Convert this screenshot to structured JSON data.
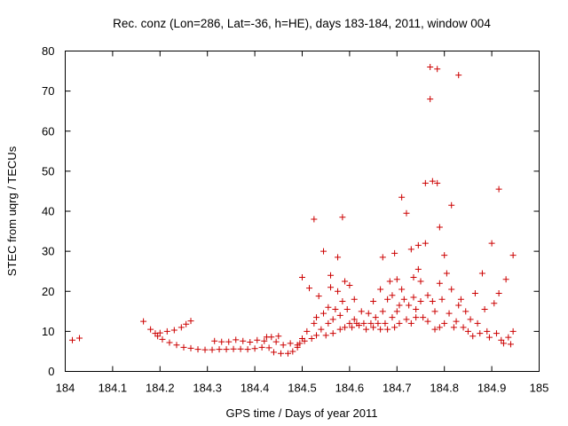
{
  "chart_data": {
    "type": "scatter",
    "title": "Rec. conz (Lon=286, Lat=-36, h=HE), days 183-184, 2011, window 004",
    "xlabel": "GPS time / Days of year 2011",
    "ylabel": "STEC from uqrg / TECUs",
    "xlim": [
      184,
      185
    ],
    "ylim": [
      0,
      80
    ],
    "xticks": [
      "184",
      "184.1",
      "184.2",
      "184.3",
      "184.4",
      "184.5",
      "184.6",
      "184.7",
      "184.8",
      "184.9",
      "185"
    ],
    "yticks": [
      "0",
      "10",
      "20",
      "30",
      "40",
      "50",
      "60",
      "70",
      "80"
    ],
    "marker": "+",
    "color": "#cc0000",
    "grid": false,
    "series": [
      {
        "name": "STEC",
        "points": [
          [
            184.015,
            7.8
          ],
          [
            184.03,
            8.3
          ],
          [
            184.165,
            12.5
          ],
          [
            184.18,
            10.5
          ],
          [
            184.19,
            9.5
          ],
          [
            184.195,
            8.8
          ],
          [
            184.2,
            9.6
          ],
          [
            184.205,
            8.0
          ],
          [
            184.215,
            10.0
          ],
          [
            184.22,
            7.2
          ],
          [
            184.23,
            10.3
          ],
          [
            184.235,
            6.6
          ],
          [
            184.245,
            11.0
          ],
          [
            184.25,
            6.0
          ],
          [
            184.255,
            11.8
          ],
          [
            184.265,
            12.6
          ],
          [
            184.265,
            5.8
          ],
          [
            184.28,
            5.5
          ],
          [
            184.295,
            5.4
          ],
          [
            184.31,
            5.4
          ],
          [
            184.315,
            7.6
          ],
          [
            184.325,
            5.5
          ],
          [
            184.33,
            7.4
          ],
          [
            184.34,
            5.5
          ],
          [
            184.345,
            7.4
          ],
          [
            184.355,
            5.6
          ],
          [
            184.36,
            7.9
          ],
          [
            184.37,
            5.6
          ],
          [
            184.375,
            7.6
          ],
          [
            184.385,
            5.5
          ],
          [
            184.39,
            7.3
          ],
          [
            184.4,
            5.7
          ],
          [
            184.405,
            7.8
          ],
          [
            184.415,
            6.0
          ],
          [
            184.42,
            7.6
          ],
          [
            184.425,
            8.6
          ],
          [
            184.43,
            5.9
          ],
          [
            184.435,
            8.6
          ],
          [
            184.44,
            4.8
          ],
          [
            184.445,
            7.4
          ],
          [
            184.45,
            8.8
          ],
          [
            184.455,
            4.5
          ],
          [
            184.46,
            6.6
          ],
          [
            184.47,
            4.5
          ],
          [
            184.475,
            7.0
          ],
          [
            184.48,
            5.0
          ],
          [
            184.49,
            6.0
          ],
          [
            184.49,
            6.6
          ],
          [
            184.495,
            7.0
          ],
          [
            184.5,
            8.2
          ],
          [
            184.5,
            23.5
          ],
          [
            184.505,
            7.6
          ],
          [
            184.51,
            10.0
          ],
          [
            184.515,
            20.8
          ],
          [
            184.52,
            8.2
          ],
          [
            184.525,
            12.0
          ],
          [
            184.525,
            38.0
          ],
          [
            184.53,
            9.0
          ],
          [
            184.53,
            13.5
          ],
          [
            184.535,
            18.8
          ],
          [
            184.54,
            10.5
          ],
          [
            184.545,
            14.5
          ],
          [
            184.545,
            30.0
          ],
          [
            184.55,
            9.0
          ],
          [
            184.555,
            12.0
          ],
          [
            184.555,
            16.0
          ],
          [
            184.56,
            21.0
          ],
          [
            184.56,
            24.0
          ],
          [
            184.565,
            9.5
          ],
          [
            184.565,
            13.0
          ],
          [
            184.57,
            15.5
          ],
          [
            184.575,
            28.5
          ],
          [
            184.575,
            20.0
          ],
          [
            184.58,
            10.5
          ],
          [
            184.58,
            14.0
          ],
          [
            184.585,
            38.5
          ],
          [
            184.585,
            17.5
          ],
          [
            184.59,
            11.0
          ],
          [
            184.59,
            22.5
          ],
          [
            184.595,
            15.5
          ],
          [
            184.6,
            12.0
          ],
          [
            184.6,
            21.5
          ],
          [
            184.605,
            11.0
          ],
          [
            184.61,
            13.0
          ],
          [
            184.61,
            18.0
          ],
          [
            184.615,
            12.0
          ],
          [
            184.62,
            11.5
          ],
          [
            184.625,
            15.0
          ],
          [
            184.63,
            12.0
          ],
          [
            184.635,
            10.5
          ],
          [
            184.64,
            14.5
          ],
          [
            184.645,
            12.0
          ],
          [
            184.65,
            17.5
          ],
          [
            184.65,
            11.0
          ],
          [
            184.655,
            13.5
          ],
          [
            184.66,
            12.0
          ],
          [
            184.665,
            10.5
          ],
          [
            184.665,
            20.5
          ],
          [
            184.67,
            28.5
          ],
          [
            184.67,
            15.0
          ],
          [
            184.675,
            12.0
          ],
          [
            184.68,
            18.0
          ],
          [
            184.68,
            10.5
          ],
          [
            184.685,
            22.5
          ],
          [
            184.69,
            13.5
          ],
          [
            184.69,
            19.0
          ],
          [
            184.695,
            29.5
          ],
          [
            184.695,
            11.0
          ],
          [
            184.7,
            23.0
          ],
          [
            184.7,
            15.0
          ],
          [
            184.705,
            16.5
          ],
          [
            184.705,
            12.0
          ],
          [
            184.71,
            43.5
          ],
          [
            184.71,
            20.5
          ],
          [
            184.715,
            18.0
          ],
          [
            184.72,
            13.0
          ],
          [
            184.72,
            39.5
          ],
          [
            184.725,
            16.5
          ],
          [
            184.73,
            12.0
          ],
          [
            184.73,
            30.5
          ],
          [
            184.735,
            23.5
          ],
          [
            184.735,
            18.5
          ],
          [
            184.74,
            15.5
          ],
          [
            184.74,
            13.5
          ],
          [
            184.745,
            31.5
          ],
          [
            184.745,
            25.5
          ],
          [
            184.75,
            17.5
          ],
          [
            184.75,
            22.5
          ],
          [
            184.755,
            13.5
          ],
          [
            184.76,
            47.0
          ],
          [
            184.76,
            32.0
          ],
          [
            184.765,
            19.0
          ],
          [
            184.765,
            12.5
          ],
          [
            184.77,
            76.0
          ],
          [
            184.77,
            68.0
          ],
          [
            184.775,
            47.5
          ],
          [
            184.775,
            17.5
          ],
          [
            184.78,
            15.0
          ],
          [
            184.78,
            10.5
          ],
          [
            184.785,
            75.5
          ],
          [
            184.785,
            47.0
          ],
          [
            184.79,
            36.0
          ],
          [
            184.79,
            22.0
          ],
          [
            184.79,
            11.0
          ],
          [
            184.795,
            18.0
          ],
          [
            184.8,
            29.0
          ],
          [
            184.8,
            12.0
          ],
          [
            184.805,
            24.5
          ],
          [
            184.81,
            14.5
          ],
          [
            184.815,
            41.5
          ],
          [
            184.815,
            20.5
          ],
          [
            184.82,
            11.0
          ],
          [
            184.825,
            12.5
          ],
          [
            184.83,
            74.0
          ],
          [
            184.83,
            16.5
          ],
          [
            184.835,
            18.0
          ],
          [
            184.84,
            11.0
          ],
          [
            184.845,
            15.0
          ],
          [
            184.85,
            10.0
          ],
          [
            184.855,
            13.0
          ],
          [
            184.86,
            8.8
          ],
          [
            184.865,
            19.5
          ],
          [
            184.87,
            12.0
          ],
          [
            184.875,
            9.5
          ],
          [
            184.88,
            24.5
          ],
          [
            184.885,
            15.5
          ],
          [
            184.89,
            10.0
          ],
          [
            184.895,
            8.5
          ],
          [
            184.9,
            32.0
          ],
          [
            184.905,
            17.0
          ],
          [
            184.91,
            9.5
          ],
          [
            184.915,
            45.5
          ],
          [
            184.915,
            19.5
          ],
          [
            184.92,
            7.8
          ],
          [
            184.925,
            7.0
          ],
          [
            184.93,
            23.0
          ],
          [
            184.935,
            8.5
          ],
          [
            184.94,
            6.8
          ],
          [
            184.945,
            29.0
          ],
          [
            184.945,
            10.0
          ]
        ]
      }
    ]
  }
}
